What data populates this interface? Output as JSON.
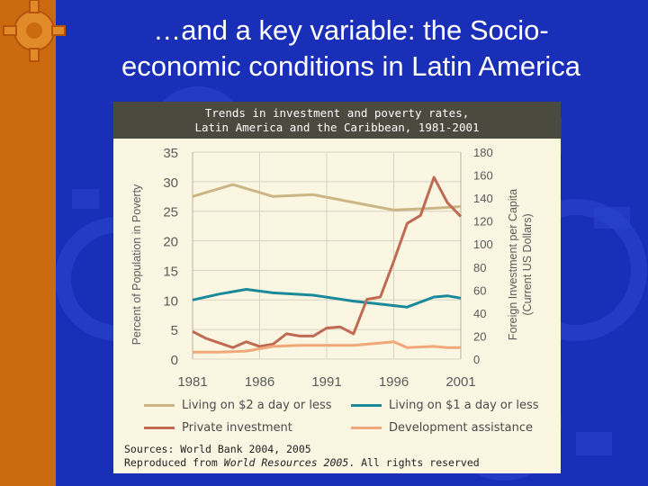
{
  "slide": {
    "title_line1": "…and a key variable: the Socio-",
    "title_line2": "economic conditions in Latin America"
  },
  "figure": {
    "header_line1": "Trends in investment and poverty rates,",
    "header_line2": "Latin America and the Caribbean, 1981-2001",
    "source_line1": "Sources: World Bank 2004, 2005",
    "source_prefix": "Reproduced from ",
    "source_work": "World Resources 2005",
    "source_suffix": ". All rights reserved"
  },
  "colors": {
    "two_dollar": "#cbb585",
    "one_dollar": "#1a8a9a",
    "private_investment": "#c06a52",
    "development_assistance": "#f0a878",
    "background": "#1a2fb8",
    "accent_strip": "#cc6a10"
  },
  "chart_data": {
    "type": "line",
    "xlabel": "",
    "ylabel_left": "Percent of Population in Poverty",
    "ylabel_right": "Foreign Investment per Capita (Current US Dollars)",
    "ylabel_right_line1": "Foreign Investment per Capita",
    "ylabel_right_line2": "(Current US Dollars)",
    "xlim": [
      1981,
      2001
    ],
    "ylim_left": [
      0,
      35
    ],
    "ylim_right": [
      0,
      180
    ],
    "x_ticks": [
      "1981",
      "1986",
      "1991",
      "1996",
      "2001"
    ],
    "y_ticks_left": [
      "0",
      "5",
      "10",
      "15",
      "20",
      "25",
      "30",
      "35"
    ],
    "y_ticks_right": [
      "0",
      "20",
      "40",
      "60",
      "80",
      "100",
      "120",
      "140",
      "160",
      "180"
    ],
    "grid": true,
    "legend_position": "bottom",
    "series": [
      {
        "name": "Living on $2 a day or less",
        "axis": "left",
        "x": [
          1981,
          1984,
          1987,
          1990,
          1993,
          1996,
          1999,
          2001
        ],
        "values": [
          27.5,
          29.5,
          27.5,
          27.8,
          26.5,
          25.2,
          25.5,
          25.8
        ]
      },
      {
        "name": "Living on $1 a day or less",
        "axis": "left",
        "x": [
          1981,
          1983,
          1985,
          1987,
          1990,
          1993,
          1995,
          1997,
          1999,
          2000,
          2001
        ],
        "values": [
          10,
          11,
          11.8,
          11.2,
          10.8,
          9.8,
          9.3,
          8.8,
          10.5,
          10.7,
          10.3
        ]
      },
      {
        "name": "Private investment",
        "axis": "right",
        "x": [
          1981,
          1982,
          1983,
          1984,
          1985,
          1986,
          1987,
          1988,
          1989,
          1990,
          1991,
          1992,
          1993,
          1994,
          1995,
          1996,
          1997,
          1998,
          1999,
          2000,
          2001
        ],
        "values": [
          24,
          18,
          14,
          10,
          15,
          11,
          13,
          22,
          20,
          20,
          27,
          28,
          22,
          52,
          54,
          85,
          118,
          125,
          158,
          136,
          124
        ]
      },
      {
        "name": "Development assistance",
        "axis": "right",
        "x": [
          1981,
          1983,
          1985,
          1987,
          1989,
          1991,
          1993,
          1995,
          1996,
          1997,
          1999,
          2000,
          2001
        ],
        "values": [
          6,
          6,
          7,
          11,
          12,
          12,
          12,
          14,
          15,
          10,
          11,
          10,
          10
        ]
      }
    ]
  }
}
